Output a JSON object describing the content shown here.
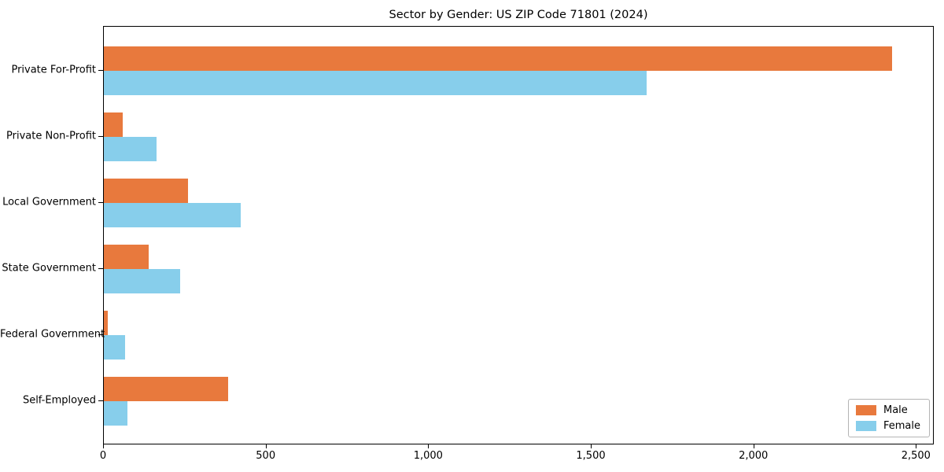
{
  "chart_data": {
    "type": "bar",
    "orientation": "horizontal",
    "title": "Sector by Gender: US ZIP Code 71801 (2024)",
    "categories": [
      "Private For-Profit",
      "Private Non-Profit",
      "Local Government",
      "State Government",
      "Federal Government",
      "Self-Employed"
    ],
    "series": [
      {
        "name": "Male",
        "color": "#e8793d",
        "values": [
          2425,
          57,
          258,
          138,
          13,
          382
        ]
      },
      {
        "name": "Female",
        "color": "#87ceeb",
        "values": [
          1670,
          162,
          420,
          234,
          66,
          73
        ]
      }
    ],
    "xlabel": "",
    "ylabel": "",
    "xlim": [
      0,
      2550
    ],
    "x_ticks": [
      0,
      500,
      1000,
      1500,
      2000,
      2500
    ],
    "x_tick_labels": [
      "0",
      "500",
      "1,000",
      "1,500",
      "2,000",
      "2,500"
    ],
    "grid": false,
    "legend_position": "lower right",
    "background_color": "#ffffff",
    "axis_color": "#000000"
  }
}
